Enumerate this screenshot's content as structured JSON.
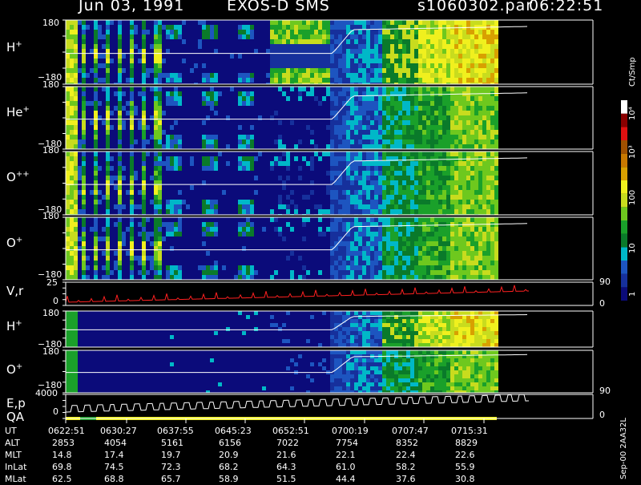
{
  "header": {
    "date": "Jun 03, 1991",
    "instrument": "EXOS-D SMS",
    "file": "s1060302.par",
    "time": "06:22:51"
  },
  "colors": {
    "spectrogram": [
      "#0b0b7a",
      "#16309c",
      "#1d55c0",
      "#00b8c8",
      "#0a7a2a",
      "#1aa02a",
      "#6ec81e",
      "#c8dc1e",
      "#f0f01e",
      "#d8a000",
      "#c87800",
      "#a05000",
      "#e01010",
      "#8a0000",
      "#ffffff"
    ],
    "trace": "#ffffff",
    "velocity_trace": "#ff2020"
  },
  "panels": [
    {
      "label": "H",
      "charge": "+",
      "y_top": "180",
      "y_bottom": "−180"
    },
    {
      "label": "He",
      "charge": "+",
      "y_top": "180",
      "y_bottom": "−180"
    },
    {
      "label": "O",
      "charge": "++",
      "y_top": "180",
      "y_bottom": "−180"
    },
    {
      "label": "O",
      "charge": "+",
      "y_top": "180",
      "y_bottom": "−180"
    },
    {
      "label": "V,r",
      "charge": "",
      "y_top": "25",
      "y_bottom": "0",
      "right_top": "90",
      "right_bottom": "0"
    },
    {
      "label": "H",
      "charge": "+",
      "y_top": "180",
      "y_bottom": "−180"
    },
    {
      "label": "O",
      "charge": "+",
      "y_top": "180",
      "y_bottom": "−180"
    },
    {
      "label": "E,p",
      "label2": "QA",
      "charge": "",
      "y_top": "4000",
      "y_bottom": "0",
      "right_top": "90",
      "right_bottom": "0"
    }
  ],
  "colorbar": {
    "unit": "Ct/Smp",
    "ticks": [
      "10⁴",
      "10³",
      "100",
      "10",
      "1"
    ]
  },
  "footer": {
    "labels": [
      "UT",
      "ALT",
      "MLT",
      "InLat",
      "MLat"
    ],
    "columns": [
      [
        "0622:51",
        "2853",
        "14.8",
        "69.8",
        "62.5"
      ],
      [
        "0630:27",
        "4054",
        "17.4",
        "74.5",
        "68.8"
      ],
      [
        "0637:55",
        "5161",
        "19.7",
        "72.3",
        "65.7"
      ],
      [
        "0645:23",
        "6156",
        "20.9",
        "68.2",
        "58.9"
      ],
      [
        "0652:51",
        "7022",
        "21.6",
        "64.3",
        "51.5"
      ],
      [
        "0700:19",
        "7754",
        "22.1",
        "61.0",
        "44.4"
      ],
      [
        "0707:47",
        "8352",
        "22.4",
        "58.2",
        "37.6"
      ],
      [
        "0715:31",
        "8829",
        "22.6",
        "55.9",
        "30.8"
      ]
    ]
  },
  "stamp": "Sep-00  2AA32L",
  "chart_data": {
    "type": "heatmap",
    "title": "Jun 03, 1991   EXOS-D SMS",
    "x": [
      "0622:51",
      "0630:27",
      "0637:55",
      "0645:23",
      "0652:51",
      "0700:19",
      "0707:47",
      "0715:31"
    ],
    "xlabel": "UT",
    "ylim": [
      -180,
      180
    ],
    "series": [
      {
        "name": "H+"
      },
      {
        "name": "He+"
      },
      {
        "name": "O++"
      },
      {
        "name": "O+"
      },
      {
        "name": "V,r"
      },
      {
        "name": "H+"
      },
      {
        "name": "O+"
      },
      {
        "name": "E,p"
      }
    ],
    "colorbar": {
      "label": "Ct/Smp",
      "scale": "log",
      "range": [
        1,
        10000
      ]
    }
  }
}
